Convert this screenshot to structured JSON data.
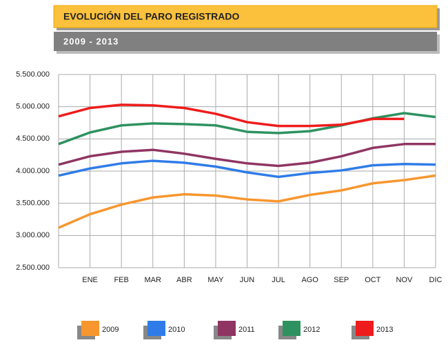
{
  "chart_data": {
    "type": "line",
    "title": "EVOLUCIÓN DEL PARO REGISTRADO",
    "subtitle": "2009 - 2013",
    "categories": [
      null,
      "ENE",
      "FEB",
      "MAR",
      "ABR",
      "MAY",
      "JUN",
      "JUL",
      "AGO",
      "SEP",
      "OCT",
      "NOV",
      "DIC"
    ],
    "series": [
      {
        "name": "2009",
        "color": "#f7962e",
        "values": [
          3120000,
          3330000,
          3480000,
          3590000,
          3640000,
          3620000,
          3560000,
          3530000,
          3630000,
          3700000,
          3810000,
          3860000,
          3930000
        ]
      },
      {
        "name": "2010",
        "color": "#2f7ce8",
        "values": [
          3930000,
          4040000,
          4120000,
          4160000,
          4130000,
          4070000,
          3980000,
          3910000,
          3970000,
          4010000,
          4090000,
          4110000,
          4100000
        ]
      },
      {
        "name": "2011",
        "color": "#8f3563",
        "values": [
          4100000,
          4230000,
          4300000,
          4330000,
          4270000,
          4190000,
          4120000,
          4080000,
          4130000,
          4230000,
          4360000,
          4420000,
          4420000
        ]
      },
      {
        "name": "2012",
        "color": "#2e9260",
        "values": [
          4420000,
          4600000,
          4710000,
          4740000,
          4730000,
          4710000,
          4610000,
          4590000,
          4620000,
          4710000,
          4820000,
          4900000,
          4840000
        ]
      },
      {
        "name": "2013",
        "color": "#ee1c1c",
        "values": [
          4850000,
          4980000,
          5030000,
          5020000,
          4980000,
          4890000,
          4760000,
          4700000,
          4700000,
          4720000,
          4810000,
          4810000,
          null
        ]
      }
    ],
    "ylim": [
      2500000,
      5500000
    ],
    "yticks": [
      {
        "value": 2500000,
        "label": "2.500.000"
      },
      {
        "value": 3000000,
        "label": "3.000.000"
      },
      {
        "value": 3500000,
        "label": "3.500.000"
      },
      {
        "value": 4000000,
        "label": "4.000.000"
      },
      {
        "value": 4500000,
        "label": "4.500.000"
      },
      {
        "value": 5000000,
        "label": "5.000.000"
      },
      {
        "value": 5500000,
        "label": "5.500.000"
      }
    ],
    "grid": true
  }
}
